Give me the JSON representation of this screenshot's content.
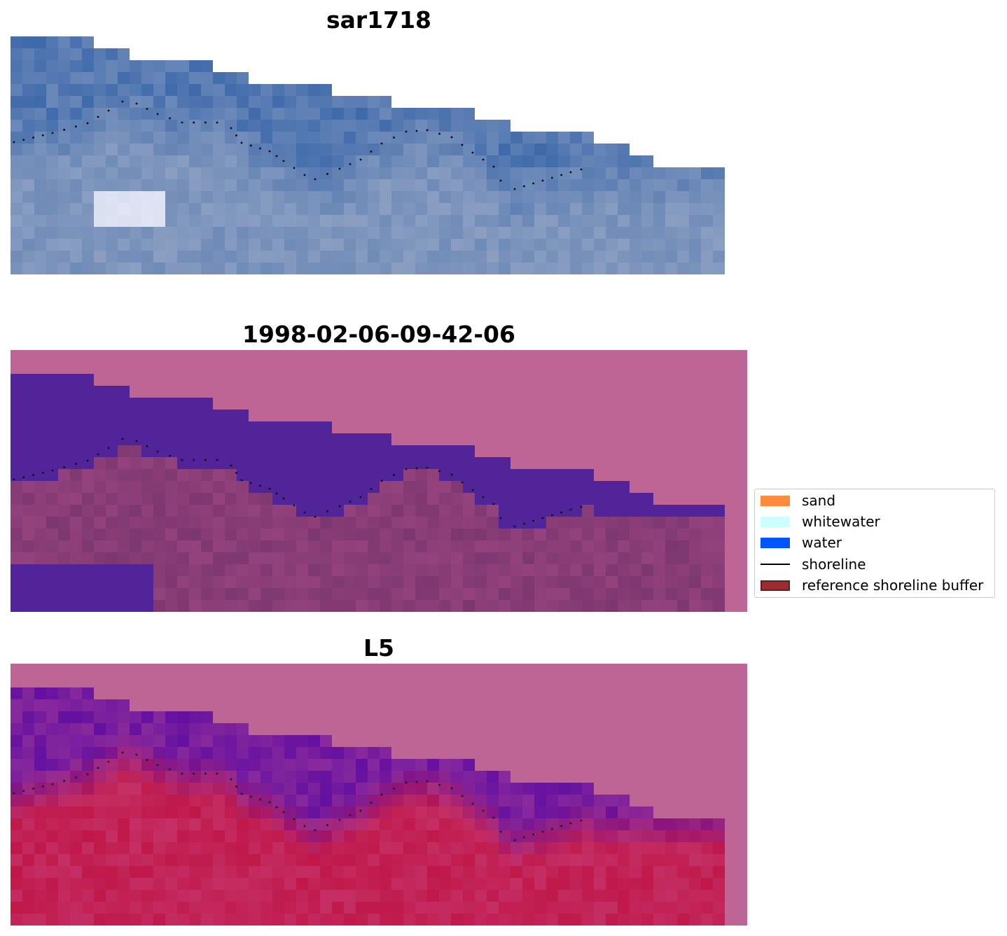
{
  "panels": [
    {
      "title": "sar1718",
      "kind": "rgb"
    },
    {
      "title": "1998-02-06-09-42-06",
      "kind": "classified"
    },
    {
      "title": "L5",
      "kind": "index"
    }
  ],
  "legend": {
    "items": [
      {
        "label": "sand",
        "color": "#ff8c3d",
        "type": "patch"
      },
      {
        "label": "whitewater",
        "color": "#ccffff",
        "type": "patch"
      },
      {
        "label": "water",
        "color": "#0055ff",
        "type": "patch"
      },
      {
        "label": "shoreline",
        "color": "#000000",
        "type": "line"
      },
      {
        "label": "reference shoreline buffer",
        "color": "#9b2d30",
        "type": "patch"
      }
    ]
  },
  "colors": {
    "background_mask": "#bd6594",
    "water_class": "#52249a",
    "rgb_water": "#3f6aaa",
    "rgb_land": "#6f8bb7",
    "index_water": "#6410a0",
    "index_land": "#c0184a",
    "shoreline": "#000000"
  }
}
